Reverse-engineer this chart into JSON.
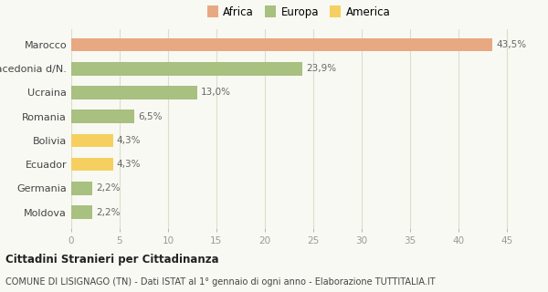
{
  "categories": [
    "Moldova",
    "Germania",
    "Ecuador",
    "Bolivia",
    "Romania",
    "Ucraina",
    "Macedonia d/N.",
    "Marocco"
  ],
  "values": [
    2.2,
    2.2,
    4.3,
    4.3,
    6.5,
    13.0,
    23.9,
    43.5
  ],
  "colors": [
    "#a8c080",
    "#a8c080",
    "#f5d060",
    "#f5d060",
    "#a8c080",
    "#a8c080",
    "#a8c080",
    "#e8a882"
  ],
  "labels": [
    "2,2%",
    "2,2%",
    "4,3%",
    "4,3%",
    "6,5%",
    "13,0%",
    "23,9%",
    "43,5%"
  ],
  "legend": [
    {
      "label": "Africa",
      "color": "#e8a882"
    },
    {
      "label": "Europa",
      "color": "#a8c080"
    },
    {
      "label": "America",
      "color": "#f5d060"
    }
  ],
  "xlim": [
    0,
    47
  ],
  "xticks": [
    0,
    5,
    10,
    15,
    20,
    25,
    30,
    35,
    40,
    45
  ],
  "title1": "Cittadini Stranieri per Cittadinanza",
  "title2": "COMUNE DI LISIGNAGO (TN) - Dati ISTAT al 1° gennaio di ogni anno - Elaborazione TUTTITALIA.IT",
  "background_color": "#f9f9f3",
  "grid_color": "#ddddcc",
  "bar_height": 0.55
}
